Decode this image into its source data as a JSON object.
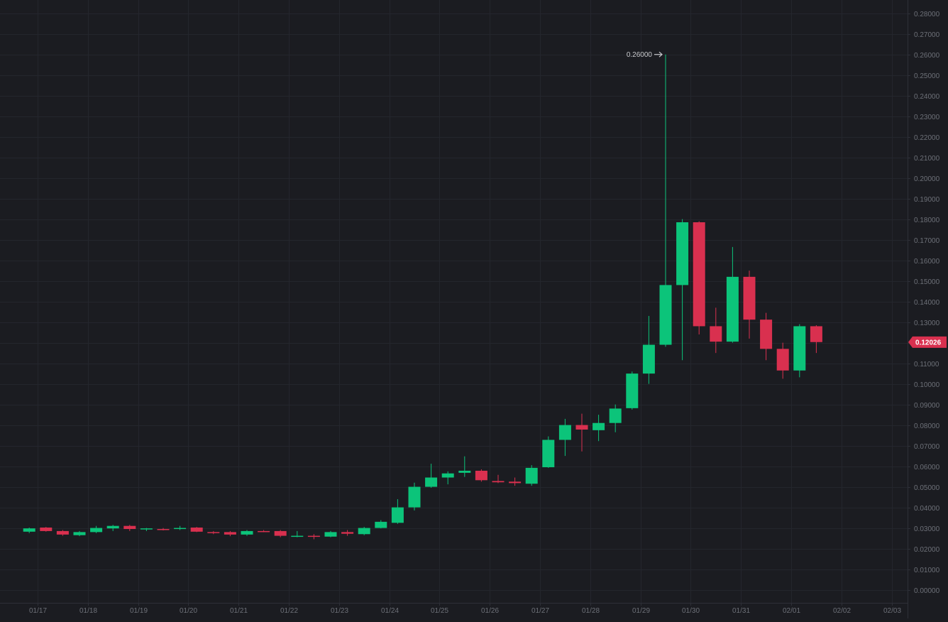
{
  "theme": {
    "background": "#1b1c21",
    "grid": "#24262d",
    "axis_line": "#2e3038",
    "tick_text": "#6d7078",
    "up": "#0cc47a",
    "down": "#d9304f",
    "annotation_text": "#c8c9cc"
  },
  "chart_data": {
    "type": "candlestick",
    "title": "",
    "xlabel": "",
    "ylabel": "",
    "grid": true,
    "ylim": [
      -0.0005,
      0.2825
    ],
    "y_ticks": [
      "0.00000",
      "0.01000",
      "0.02000",
      "0.03000",
      "0.04000",
      "0.05000",
      "0.06000",
      "0.07000",
      "0.08000",
      "0.09000",
      "0.10000",
      "0.11000",
      "0.12000",
      "0.13000",
      "0.14000",
      "0.15000",
      "0.16000",
      "0.17000",
      "0.18000",
      "0.19000",
      "0.20000",
      "0.21000",
      "0.22000",
      "0.23000",
      "0.24000",
      "0.25000",
      "0.26000",
      "0.27000",
      "0.28000"
    ],
    "x_ticks": [
      "01/17",
      "01/18",
      "01/19",
      "01/20",
      "01/21",
      "01/22",
      "01/23",
      "01/24",
      "01/25",
      "01/26",
      "01/27",
      "01/28",
      "01/29",
      "01/30",
      "01/31",
      "02/01",
      "02/02",
      "02/03"
    ],
    "x_start": "01/16",
    "candles_per_day": 3,
    "candles": [
      {
        "time": "01/16 16:00",
        "open": 0.0282,
        "high": 0.0302,
        "low": 0.0275,
        "close": 0.0298
      },
      {
        "time": "01/17 00:00",
        "open": 0.0302,
        "high": 0.0305,
        "low": 0.0282,
        "close": 0.0285
      },
      {
        "time": "01/17 08:00",
        "open": 0.0285,
        "high": 0.029,
        "low": 0.0262,
        "close": 0.0268
      },
      {
        "time": "01/17 16:00",
        "open": 0.0265,
        "high": 0.0285,
        "low": 0.026,
        "close": 0.028
      },
      {
        "time": "01/18 00:00",
        "open": 0.028,
        "high": 0.031,
        "low": 0.0275,
        "close": 0.03
      },
      {
        "time": "01/18 08:00",
        "open": 0.0298,
        "high": 0.0315,
        "low": 0.0285,
        "close": 0.031
      },
      {
        "time": "01/18 16:00",
        "open": 0.031,
        "high": 0.0315,
        "low": 0.0285,
        "close": 0.0295
      },
      {
        "time": "01/19 00:00",
        "open": 0.0293,
        "high": 0.03,
        "low": 0.0285,
        "close": 0.0298
      },
      {
        "time": "01/19 08:00",
        "open": 0.0295,
        "high": 0.03,
        "low": 0.0288,
        "close": 0.0292
      },
      {
        "time": "01/19 16:00",
        "open": 0.0295,
        "high": 0.031,
        "low": 0.029,
        "close": 0.03
      },
      {
        "time": "01/20 00:00",
        "open": 0.0302,
        "high": 0.0305,
        "low": 0.028,
        "close": 0.0282
      },
      {
        "time": "01/20 08:00",
        "open": 0.028,
        "high": 0.0285,
        "low": 0.027,
        "close": 0.0275
      },
      {
        "time": "01/20 16:00",
        "open": 0.028,
        "high": 0.0285,
        "low": 0.026,
        "close": 0.0268
      },
      {
        "time": "01/21 00:00",
        "open": 0.0268,
        "high": 0.029,
        "low": 0.0262,
        "close": 0.0285
      },
      {
        "time": "01/21 08:00",
        "open": 0.0285,
        "high": 0.029,
        "low": 0.028,
        "close": 0.0282
      },
      {
        "time": "01/21 16:00",
        "open": 0.0285,
        "high": 0.029,
        "low": 0.0255,
        "close": 0.0262
      },
      {
        "time": "01/22 00:00",
        "open": 0.026,
        "high": 0.0285,
        "low": 0.0255,
        "close": 0.0262
      },
      {
        "time": "01/22 08:00",
        "open": 0.0262,
        "high": 0.027,
        "low": 0.0245,
        "close": 0.0258
      },
      {
        "time": "01/22 16:00",
        "open": 0.0258,
        "high": 0.0285,
        "low": 0.0255,
        "close": 0.028
      },
      {
        "time": "01/23 00:00",
        "open": 0.028,
        "high": 0.029,
        "low": 0.0262,
        "close": 0.0272
      },
      {
        "time": "01/23 08:00",
        "open": 0.027,
        "high": 0.0305,
        "low": 0.0265,
        "close": 0.03
      },
      {
        "time": "01/23 16:00",
        "open": 0.03,
        "high": 0.0338,
        "low": 0.0298,
        "close": 0.033
      },
      {
        "time": "01/24 00:00",
        "open": 0.0325,
        "high": 0.044,
        "low": 0.032,
        "close": 0.04
      },
      {
        "time": "01/24 08:00",
        "open": 0.04,
        "high": 0.052,
        "low": 0.0385,
        "close": 0.05
      },
      {
        "time": "01/24 16:00",
        "open": 0.05,
        "high": 0.0612,
        "low": 0.0495,
        "close": 0.0545
      },
      {
        "time": "01/25 00:00",
        "open": 0.0545,
        "high": 0.0575,
        "low": 0.0512,
        "close": 0.0565
      },
      {
        "time": "01/25 08:00",
        "open": 0.0568,
        "high": 0.0648,
        "low": 0.0548,
        "close": 0.0578
      },
      {
        "time": "01/25 16:00",
        "open": 0.0578,
        "high": 0.0585,
        "low": 0.0525,
        "close": 0.0532
      },
      {
        "time": "01/26 00:00",
        "open": 0.0528,
        "high": 0.0558,
        "low": 0.0518,
        "close": 0.0522
      },
      {
        "time": "01/26 08:00",
        "open": 0.0525,
        "high": 0.0545,
        "low": 0.0505,
        "close": 0.0518
      },
      {
        "time": "01/26 16:00",
        "open": 0.0515,
        "high": 0.0605,
        "low": 0.0505,
        "close": 0.0592
      },
      {
        "time": "01/27 00:00",
        "open": 0.0595,
        "high": 0.0745,
        "low": 0.0592,
        "close": 0.0728
      },
      {
        "time": "01/27 08:00",
        "open": 0.0728,
        "high": 0.083,
        "low": 0.065,
        "close": 0.08
      },
      {
        "time": "01/27 16:00",
        "open": 0.08,
        "high": 0.0855,
        "low": 0.0672,
        "close": 0.0778
      },
      {
        "time": "01/28 00:00",
        "open": 0.0775,
        "high": 0.085,
        "low": 0.0722,
        "close": 0.081
      },
      {
        "time": "01/28 08:00",
        "open": 0.081,
        "high": 0.09,
        "low": 0.0765,
        "close": 0.088
      },
      {
        "time": "01/28 16:00",
        "open": 0.0882,
        "high": 0.106,
        "low": 0.0875,
        "close": 0.105
      },
      {
        "time": "01/29 00:00",
        "open": 0.105,
        "high": 0.133,
        "low": 0.1,
        "close": 0.119
      },
      {
        "time": "01/29 08:00",
        "open": 0.119,
        "high": 0.26,
        "low": 0.118,
        "close": 0.148
      },
      {
        "time": "01/29 16:00",
        "open": 0.148,
        "high": 0.18,
        "low": 0.1115,
        "close": 0.1785
      },
      {
        "time": "01/30 00:00",
        "open": 0.1785,
        "high": 0.179,
        "low": 0.124,
        "close": 0.128
      },
      {
        "time": "01/30 08:00",
        "open": 0.128,
        "high": 0.137,
        "low": 0.115,
        "close": 0.1205
      },
      {
        "time": "01/30 16:00",
        "open": 0.1205,
        "high": 0.1665,
        "low": 0.12,
        "close": 0.152
      },
      {
        "time": "01/31 00:00",
        "open": 0.152,
        "high": 0.155,
        "low": 0.122,
        "close": 0.1312
      },
      {
        "time": "01/31 08:00",
        "open": 0.1312,
        "high": 0.1345,
        "low": 0.1115,
        "close": 0.117
      },
      {
        "time": "01/31 16:00",
        "open": 0.117,
        "high": 0.12,
        "low": 0.1025,
        "close": 0.1065
      },
      {
        "time": "02/01 00:00",
        "open": 0.1065,
        "high": 0.129,
        "low": 0.1032,
        "close": 0.128
      },
      {
        "time": "02/01 08:00",
        "open": 0.128,
        "high": 0.1285,
        "low": 0.115,
        "close": 0.1203
      }
    ],
    "annotations": [
      {
        "type": "high-marker",
        "label": "0.26000",
        "time": "01/29 08:00",
        "value": 0.26
      }
    ],
    "last_price": {
      "label": "0.12026",
      "value": 0.12026,
      "color": "#d9304f"
    }
  }
}
